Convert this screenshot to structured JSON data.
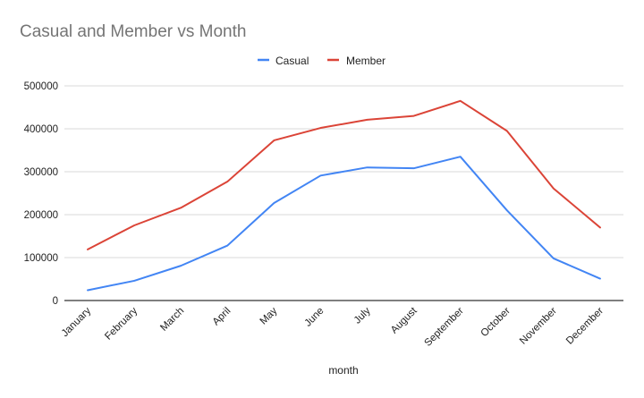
{
  "chart_data": {
    "type": "line",
    "title": "Casual  and Member vs Month",
    "xlabel": "month",
    "ylabel": "",
    "categories": [
      "January",
      "February",
      "March",
      "April",
      "May",
      "June",
      "July",
      "August",
      "September",
      "October",
      "November",
      "December"
    ],
    "yticks": [
      "0",
      "100000",
      "200000",
      "300000",
      "400000",
      "500000"
    ],
    "ylim": [
      0,
      500000
    ],
    "grid": true,
    "legend_position": "top",
    "series": [
      {
        "name": "Casual",
        "color": "#4285f4",
        "values": [
          24000,
          46000,
          81000,
          128000,
          227000,
          291000,
          310000,
          308000,
          335000,
          210000,
          98000,
          51000
        ]
      },
      {
        "name": "Member",
        "color": "#db4437",
        "values": [
          119000,
          175000,
          216000,
          277000,
          373000,
          402000,
          421000,
          430000,
          465000,
          395000,
          261000,
          170000
        ]
      }
    ]
  }
}
